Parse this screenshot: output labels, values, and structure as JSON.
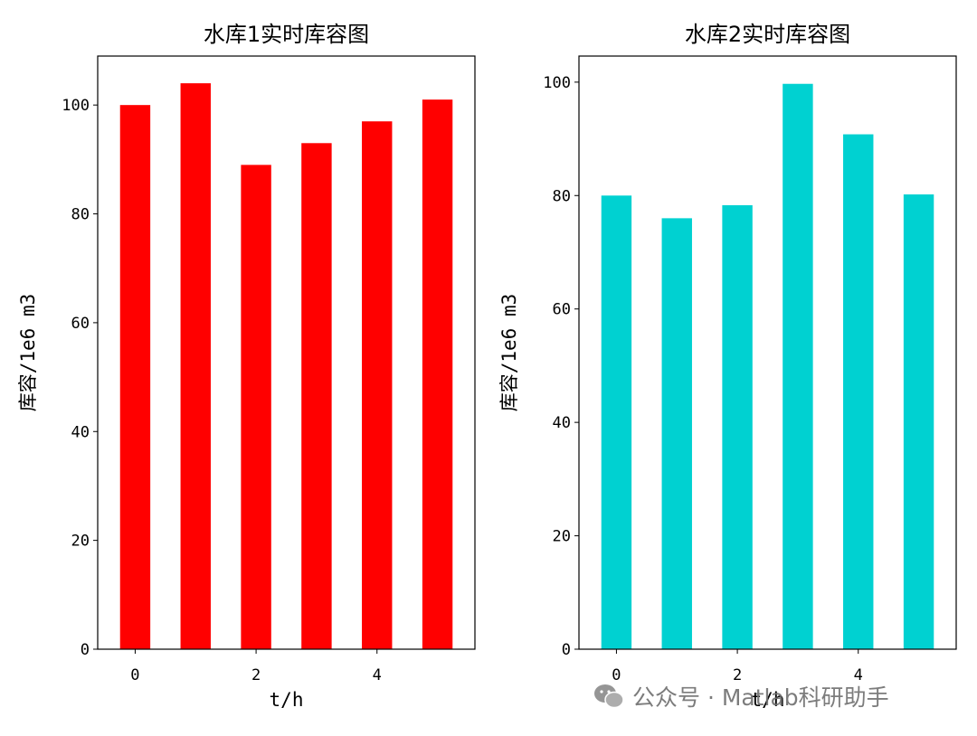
{
  "chart_data": [
    {
      "type": "bar",
      "title": "水库1实时库容图",
      "xlabel": "t/h",
      "ylabel": "库容/1e6 m3",
      "x": [
        0,
        1,
        2,
        3,
        4,
        5
      ],
      "values": [
        100,
        104,
        89,
        93,
        97,
        101
      ],
      "xticks": [
        "0",
        "2",
        "4"
      ],
      "yticks": [
        "0",
        "20",
        "40",
        "60",
        "80",
        "100"
      ],
      "xlim": [
        -0.62,
        5.62
      ],
      "ylim": [
        0,
        109
      ],
      "color": "#ff0000",
      "grid": false
    },
    {
      "type": "bar",
      "title": "水库2实时库容图",
      "xlabel": "t/h",
      "ylabel": "库容/1e6 m3",
      "x": [
        0,
        1,
        2,
        3,
        4,
        5
      ],
      "values": [
        80,
        76,
        78.3,
        99.7,
        90.8,
        80.2
      ],
      "xticks": [
        "0",
        "2",
        "4"
      ],
      "yticks": [
        "0",
        "20",
        "40",
        "60",
        "80",
        "100"
      ],
      "xlim": [
        -0.62,
        5.62
      ],
      "ylim": [
        0,
        104.6
      ],
      "color": "#00d1d1",
      "grid": false
    }
  ],
  "watermark": {
    "text": "公众号 · Matlab科研助手",
    "icon": "wechat-icon"
  }
}
